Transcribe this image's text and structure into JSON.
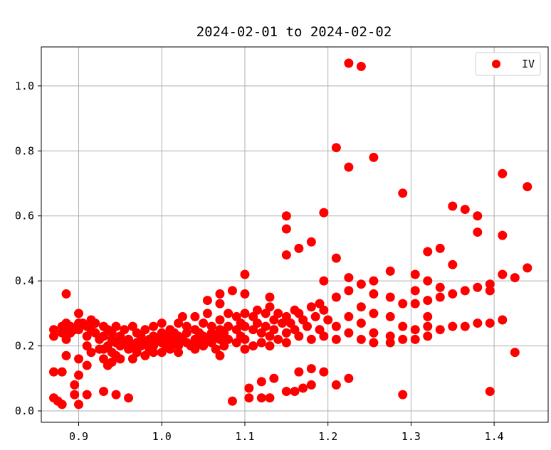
{
  "chart_data": {
    "type": "scatter",
    "title": "2024-02-01 to 2024-02-02",
    "xlabel": "",
    "ylabel": "",
    "xlim": [
      0.855,
      1.465
    ],
    "ylim": [
      -0.035,
      1.12
    ],
    "xticks": [
      0.9,
      1.0,
      1.1,
      1.2,
      1.3,
      1.4
    ],
    "xtick_labels": [
      "0.9",
      "1.0",
      "1.1",
      "1.2",
      "1.3",
      "1.4"
    ],
    "yticks": [
      0.0,
      0.2,
      0.4,
      0.6,
      0.8,
      1.0
    ],
    "ytick_labels": [
      "0.0",
      "0.2",
      "0.4",
      "0.6",
      "0.8",
      "1.0"
    ],
    "grid": true,
    "legend_position": "top-right",
    "series": [
      {
        "name": "IV",
        "color": "#ff0000",
        "points": [
          [
            0.87,
            0.25
          ],
          [
            0.87,
            0.23
          ],
          [
            0.87,
            0.12
          ],
          [
            0.87,
            0.04
          ],
          [
            0.875,
            0.03
          ],
          [
            0.88,
            0.26
          ],
          [
            0.88,
            0.24
          ],
          [
            0.88,
            0.12
          ],
          [
            0.88,
            0.02
          ],
          [
            0.885,
            0.36
          ],
          [
            0.885,
            0.27
          ],
          [
            0.885,
            0.25
          ],
          [
            0.885,
            0.22
          ],
          [
            0.885,
            0.17
          ],
          [
            0.89,
            0.26
          ],
          [
            0.89,
            0.24
          ],
          [
            0.895,
            0.25
          ],
          [
            0.895,
            0.08
          ],
          [
            0.895,
            0.05
          ],
          [
            0.9,
            0.3
          ],
          [
            0.9,
            0.27
          ],
          [
            0.9,
            0.25
          ],
          [
            0.9,
            0.16
          ],
          [
            0.9,
            0.11
          ],
          [
            0.9,
            0.02
          ],
          [
            0.905,
            0.27
          ],
          [
            0.91,
            0.26
          ],
          [
            0.91,
            0.23
          ],
          [
            0.91,
            0.2
          ],
          [
            0.91,
            0.14
          ],
          [
            0.91,
            0.05
          ],
          [
            0.915,
            0.28
          ],
          [
            0.915,
            0.25
          ],
          [
            0.915,
            0.18
          ],
          [
            0.92,
            0.27
          ],
          [
            0.92,
            0.24
          ],
          [
            0.925,
            0.22
          ],
          [
            0.925,
            0.19
          ],
          [
            0.93,
            0.26
          ],
          [
            0.93,
            0.23
          ],
          [
            0.93,
            0.19
          ],
          [
            0.93,
            0.16
          ],
          [
            0.93,
            0.06
          ],
          [
            0.935,
            0.25
          ],
          [
            0.935,
            0.2
          ],
          [
            0.935,
            0.14
          ],
          [
            0.94,
            0.24
          ],
          [
            0.94,
            0.22
          ],
          [
            0.94,
            0.18
          ],
          [
            0.94,
            0.15
          ],
          [
            0.945,
            0.26
          ],
          [
            0.945,
            0.21
          ],
          [
            0.945,
            0.17
          ],
          [
            0.945,
            0.05
          ],
          [
            0.95,
            0.23
          ],
          [
            0.95,
            0.2
          ],
          [
            0.95,
            0.16
          ],
          [
            0.955,
            0.25
          ],
          [
            0.955,
            0.21
          ],
          [
            0.96,
            0.22
          ],
          [
            0.96,
            0.19
          ],
          [
            0.96,
            0.04
          ],
          [
            0.965,
            0.26
          ],
          [
            0.965,
            0.2
          ],
          [
            0.965,
            0.16
          ],
          [
            0.97,
            0.24
          ],
          [
            0.97,
            0.21
          ],
          [
            0.97,
            0.18
          ],
          [
            0.975,
            0.23
          ],
          [
            0.975,
            0.2
          ],
          [
            0.98,
            0.25
          ],
          [
            0.98,
            0.21
          ],
          [
            0.98,
            0.17
          ],
          [
            0.985,
            0.22
          ],
          [
            0.985,
            0.19
          ],
          [
            0.99,
            0.26
          ],
          [
            0.99,
            0.23
          ],
          [
            0.99,
            0.2
          ],
          [
            0.99,
            0.18
          ],
          [
            0.995,
            0.22
          ],
          [
            1.0,
            0.27
          ],
          [
            1.0,
            0.24
          ],
          [
            1.0,
            0.21
          ],
          [
            1.0,
            0.18
          ],
          [
            1.005,
            0.23
          ],
          [
            1.005,
            0.2
          ],
          [
            1.01,
            0.25
          ],
          [
            1.01,
            0.22
          ],
          [
            1.01,
            0.19
          ],
          [
            1.015,
            0.24
          ],
          [
            1.015,
            0.21
          ],
          [
            1.02,
            0.27
          ],
          [
            1.02,
            0.23
          ],
          [
            1.02,
            0.2
          ],
          [
            1.02,
            0.18
          ],
          [
            1.025,
            0.29
          ],
          [
            1.025,
            0.22
          ],
          [
            1.03,
            0.26
          ],
          [
            1.03,
            0.24
          ],
          [
            1.03,
            0.21
          ],
          [
            1.035,
            0.2
          ],
          [
            1.04,
            0.29
          ],
          [
            1.04,
            0.25
          ],
          [
            1.04,
            0.22
          ],
          [
            1.04,
            0.19
          ],
          [
            1.045,
            0.24
          ],
          [
            1.045,
            0.21
          ],
          [
            1.05,
            0.27
          ],
          [
            1.05,
            0.23
          ],
          [
            1.05,
            0.2
          ],
          [
            1.055,
            0.34
          ],
          [
            1.055,
            0.3
          ],
          [
            1.055,
            0.22
          ],
          [
            1.06,
            0.26
          ],
          [
            1.06,
            0.24
          ],
          [
            1.06,
            0.21
          ],
          [
            1.065,
            0.23
          ],
          [
            1.065,
            0.19
          ],
          [
            1.07,
            0.36
          ],
          [
            1.07,
            0.33
          ],
          [
            1.07,
            0.28
          ],
          [
            1.07,
            0.25
          ],
          [
            1.07,
            0.22
          ],
          [
            1.07,
            0.17
          ],
          [
            1.075,
            0.24
          ],
          [
            1.075,
            0.2
          ],
          [
            1.08,
            0.3
          ],
          [
            1.08,
            0.26
          ],
          [
            1.08,
            0.22
          ],
          [
            1.085,
            0.37
          ],
          [
            1.085,
            0.03
          ],
          [
            1.09,
            0.29
          ],
          [
            1.09,
            0.25
          ],
          [
            1.09,
            0.21
          ],
          [
            1.095,
            0.27
          ],
          [
            1.095,
            0.23
          ],
          [
            1.1,
            0.42
          ],
          [
            1.1,
            0.36
          ],
          [
            1.1,
            0.3
          ],
          [
            1.1,
            0.26
          ],
          [
            1.1,
            0.22
          ],
          [
            1.1,
            0.19
          ],
          [
            1.105,
            0.07
          ],
          [
            1.105,
            0.04
          ],
          [
            1.11,
            0.29
          ],
          [
            1.11,
            0.25
          ],
          [
            1.11,
            0.2
          ],
          [
            1.115,
            0.31
          ],
          [
            1.115,
            0.27
          ],
          [
            1.12,
            0.24
          ],
          [
            1.12,
            0.21
          ],
          [
            1.12,
            0.09
          ],
          [
            1.12,
            0.04
          ],
          [
            1.125,
            0.3
          ],
          [
            1.125,
            0.26
          ],
          [
            1.13,
            0.35
          ],
          [
            1.13,
            0.32
          ],
          [
            1.13,
            0.23
          ],
          [
            1.13,
            0.2
          ],
          [
            1.13,
            0.04
          ],
          [
            1.135,
            0.28
          ],
          [
            1.135,
            0.25
          ],
          [
            1.135,
            0.1
          ],
          [
            1.14,
            0.3
          ],
          [
            1.14,
            0.22
          ],
          [
            1.145,
            0.27
          ],
          [
            1.15,
            0.6
          ],
          [
            1.15,
            0.56
          ],
          [
            1.15,
            0.48
          ],
          [
            1.15,
            0.29
          ],
          [
            1.15,
            0.24
          ],
          [
            1.15,
            0.21
          ],
          [
            1.15,
            0.06
          ],
          [
            1.155,
            0.27
          ],
          [
            1.16,
            0.31
          ],
          [
            1.16,
            0.25
          ],
          [
            1.16,
            0.06
          ],
          [
            1.165,
            0.5
          ],
          [
            1.165,
            0.3
          ],
          [
            1.165,
            0.23
          ],
          [
            1.165,
            0.12
          ],
          [
            1.17,
            0.28
          ],
          [
            1.17,
            0.07
          ],
          [
            1.175,
            0.26
          ],
          [
            1.18,
            0.52
          ],
          [
            1.18,
            0.32
          ],
          [
            1.18,
            0.22
          ],
          [
            1.18,
            0.13
          ],
          [
            1.18,
            0.08
          ],
          [
            1.185,
            0.29
          ],
          [
            1.19,
            0.33
          ],
          [
            1.19,
            0.25
          ],
          [
            1.195,
            0.61
          ],
          [
            1.195,
            0.4
          ],
          [
            1.195,
            0.31
          ],
          [
            1.195,
            0.23
          ],
          [
            1.195,
            0.12
          ],
          [
            1.2,
            0.28
          ],
          [
            1.21,
            0.81
          ],
          [
            1.21,
            0.47
          ],
          [
            1.21,
            0.35
          ],
          [
            1.21,
            0.26
          ],
          [
            1.21,
            0.22
          ],
          [
            1.21,
            0.08
          ],
          [
            1.225,
            1.07
          ],
          [
            1.225,
            0.75
          ],
          [
            1.225,
            0.41
          ],
          [
            1.225,
            0.37
          ],
          [
            1.225,
            0.29
          ],
          [
            1.225,
            0.24
          ],
          [
            1.225,
            0.1
          ],
          [
            1.24,
            1.06
          ],
          [
            1.24,
            0.39
          ],
          [
            1.24,
            0.32
          ],
          [
            1.24,
            0.27
          ],
          [
            1.24,
            0.22
          ],
          [
            1.255,
            0.78
          ],
          [
            1.255,
            0.4
          ],
          [
            1.255,
            0.36
          ],
          [
            1.255,
            0.3
          ],
          [
            1.255,
            0.24
          ],
          [
            1.255,
            0.21
          ],
          [
            1.275,
            0.43
          ],
          [
            1.275,
            0.35
          ],
          [
            1.275,
            0.29
          ],
          [
            1.275,
            0.23
          ],
          [
            1.275,
            0.21
          ],
          [
            1.29,
            0.67
          ],
          [
            1.29,
            0.33
          ],
          [
            1.29,
            0.26
          ],
          [
            1.29,
            0.22
          ],
          [
            1.29,
            0.05
          ],
          [
            1.305,
            0.42
          ],
          [
            1.305,
            0.37
          ],
          [
            1.305,
            0.33
          ],
          [
            1.305,
            0.25
          ],
          [
            1.305,
            0.22
          ],
          [
            1.32,
            0.49
          ],
          [
            1.32,
            0.4
          ],
          [
            1.32,
            0.34
          ],
          [
            1.32,
            0.29
          ],
          [
            1.32,
            0.26
          ],
          [
            1.32,
            0.23
          ],
          [
            1.335,
            0.5
          ],
          [
            1.335,
            0.38
          ],
          [
            1.335,
            0.35
          ],
          [
            1.335,
            0.25
          ],
          [
            1.35,
            0.63
          ],
          [
            1.35,
            0.45
          ],
          [
            1.35,
            0.36
          ],
          [
            1.35,
            0.26
          ],
          [
            1.365,
            0.62
          ],
          [
            1.365,
            0.37
          ],
          [
            1.365,
            0.26
          ],
          [
            1.38,
            0.6
          ],
          [
            1.38,
            0.55
          ],
          [
            1.38,
            0.38
          ],
          [
            1.38,
            0.27
          ],
          [
            1.395,
            0.39
          ],
          [
            1.395,
            0.37
          ],
          [
            1.395,
            0.27
          ],
          [
            1.395,
            0.06
          ],
          [
            1.41,
            0.73
          ],
          [
            1.41,
            0.54
          ],
          [
            1.41,
            0.42
          ],
          [
            1.41,
            0.28
          ],
          [
            1.425,
            0.41
          ],
          [
            1.425,
            0.18
          ],
          [
            1.44,
            0.69
          ],
          [
            1.44,
            0.44
          ]
        ]
      }
    ]
  }
}
